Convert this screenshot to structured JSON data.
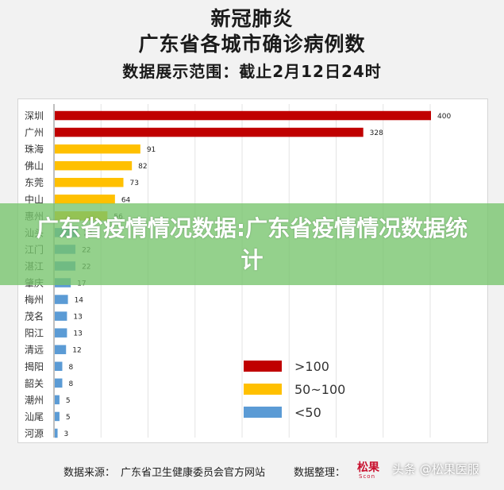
{
  "header": {
    "title_line1": "新冠肺炎",
    "title_line2": "广东省各城市确诊病例数",
    "subtitle": "数据展示范围：截止2月12日24时"
  },
  "chart_data": {
    "type": "bar",
    "orientation": "horizontal",
    "categories": [
      "深圳",
      "广州",
      "珠海",
      "佛山",
      "东莞",
      "中山",
      "惠州",
      "汕头",
      "江门",
      "湛江",
      "肇庆",
      "梅州",
      "茂名",
      "阳江",
      "清远",
      "揭阳",
      "韶关",
      "潮州",
      "汕尾",
      "河源"
    ],
    "values": [
      400,
      328,
      91,
      82,
      73,
      64,
      56,
      24,
      22,
      22,
      17,
      14,
      13,
      13,
      12,
      8,
      8,
      5,
      5,
      3
    ],
    "xlim": [
      0,
      400
    ],
    "grid": true,
    "legend": [
      {
        "label": ">100",
        "color": "#c00000"
      },
      {
        "label": "50~100",
        "color": "#ffc000"
      },
      {
        "label": "<50",
        "color": "#5b9bd5"
      }
    ],
    "legend_position": "bottom-right"
  },
  "colors": {
    "high": "#c00000",
    "mid": "#ffc000",
    "low": "#5b9bd5",
    "banner": "#76c46c"
  },
  "banner": {
    "text": "广东省疫情情况数据:广东省疫情情况数据统计"
  },
  "footer": {
    "source_label": "数据来源：",
    "source_value": "广东省卫生健康委员会官方网站",
    "organizer_label": "数据整理：",
    "logo_text": "松果",
    "logo_sub": "Scon",
    "watermark": "头条 @松果医服"
  }
}
